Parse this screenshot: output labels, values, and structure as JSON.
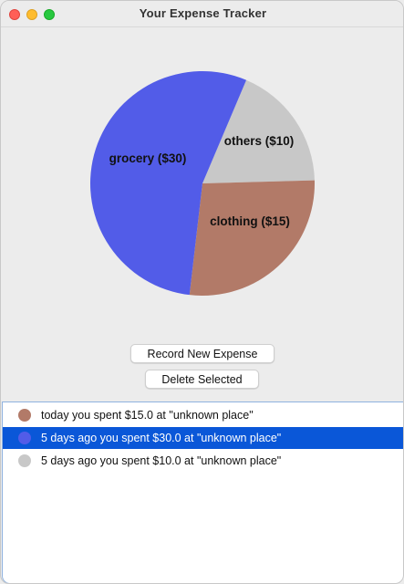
{
  "window": {
    "title": "Your Expense Tracker"
  },
  "chart_data": {
    "type": "pie",
    "slices": [
      {
        "label": "grocery ($30)",
        "category": "grocery",
        "value": 30,
        "color": "#525ce8"
      },
      {
        "label": "others ($10)",
        "category": "others",
        "value": 10,
        "color": "#c8c8c8"
      },
      {
        "label": "clothing ($15)",
        "category": "clothing",
        "value": 15,
        "color": "#b27a68"
      }
    ]
  },
  "buttons": {
    "record_label": "Record New Expense",
    "delete_label": "Delete Selected"
  },
  "expenses": {
    "items": [
      {
        "text": "today you spent $15.0 at \"unknown place\"",
        "color": "#b27a68",
        "selected": false
      },
      {
        "text": "5 days ago you spent $30.0 at \"unknown place\"",
        "color": "#525ce8",
        "selected": true
      },
      {
        "text": "5 days ago you spent $10.0 at \"unknown place\"",
        "color": "#c8c8c8",
        "selected": false
      }
    ]
  }
}
